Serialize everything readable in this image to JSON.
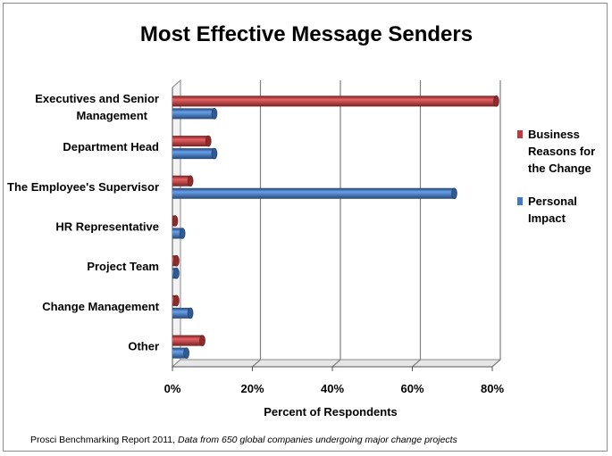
{
  "chart_data": {
    "type": "bar",
    "orientation": "horizontal",
    "title": "Most Effective Message Senders",
    "xlabel": "Percent of Respondents",
    "ylabel": "",
    "categories": [
      [
        "Executives and Senior",
        "Management"
      ],
      [
        "Department Head"
      ],
      [
        "The Employee's Supervisor"
      ],
      [
        "HR Representative"
      ],
      [
        "Project Team"
      ],
      [
        "Change Management"
      ],
      [
        "Other"
      ]
    ],
    "series": [
      {
        "name": "Business Reasons for the Change",
        "legend_lines": [
          "Business",
          "Reasons for",
          "the Change"
        ],
        "color": "#c0393b",
        "values": [
          81,
          9,
          4.5,
          0.5,
          1,
          1,
          7.5
        ]
      },
      {
        "name": "Personal Impact",
        "legend_lines": [
          "Personal",
          "Impact"
        ],
        "color": "#3f78c4",
        "values": [
          10.5,
          10.5,
          70.5,
          2.5,
          1,
          4.5,
          3.5
        ]
      }
    ],
    "xlim": [
      0,
      80
    ],
    "xticks": [
      "0%",
      "20%",
      "40%",
      "60%",
      "80%"
    ],
    "grid": true,
    "legend_position": "right"
  },
  "source": {
    "prefix": "Prosci Benchmarking Report 2011, ",
    "italic": "Data from 650 global companies undergoing major change projects"
  }
}
